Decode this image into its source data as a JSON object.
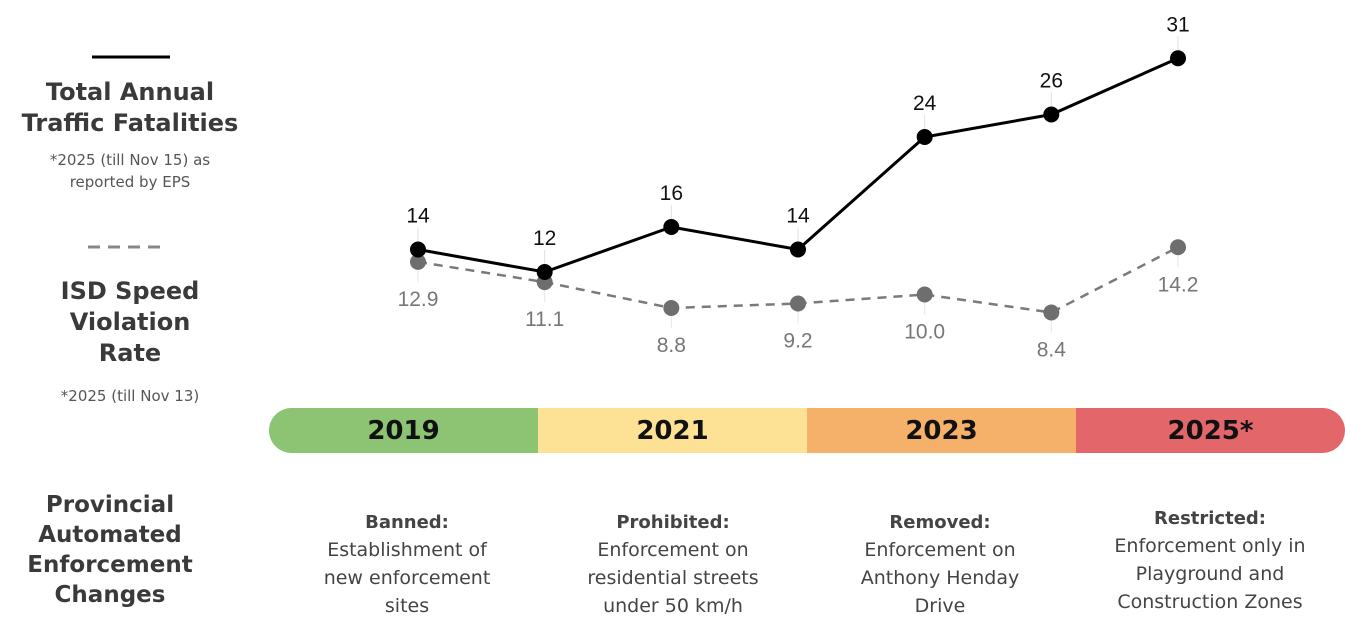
{
  "legend": {
    "fatalities": {
      "title_line1": "Total Annual",
      "title_line2": "Traffic Fatalities",
      "note_line1": "*2025 (till Nov 15) as",
      "note_line2": "reported by EPS",
      "color": "#000000"
    },
    "isd": {
      "title_line1": "ISD Speed Violation",
      "title_line2": "Rate",
      "note": "*2025 (till Nov 13)",
      "color": "#777777"
    }
  },
  "chart_data": {
    "type": "line",
    "x_count": 7,
    "series": [
      {
        "name": "Total Annual Traffic Fatalities",
        "values": [
          14,
          12,
          16,
          14,
          24,
          26,
          31
        ],
        "labels": [
          "14",
          "12",
          "16",
          "14",
          "24",
          "26",
          "31"
        ],
        "style": "solid",
        "color": "#000000"
      },
      {
        "name": "ISD Speed Violation Rate",
        "values": [
          12.9,
          11.1,
          8.8,
          9.2,
          10.0,
          8.4,
          14.2
        ],
        "labels": [
          "12.9",
          "11.1",
          "8.8",
          "9.2",
          "10.0",
          "8.4",
          "14.2"
        ],
        "style": "dashed",
        "color": "#6e6e6e"
      }
    ],
    "grid": false
  },
  "timeline": {
    "segments": [
      {
        "label": "2019",
        "color": "#8cc474"
      },
      {
        "label": "2021",
        "color": "#fde295"
      },
      {
        "label": "2023",
        "color": "#f5b06a"
      },
      {
        "label": "2025*",
        "color": "#e3676a"
      }
    ]
  },
  "changes": {
    "section_title": [
      "Provincial",
      "Automated",
      "Enforcement",
      "Changes"
    ],
    "items": [
      {
        "head": "Banned:",
        "lines": [
          "Establishment of",
          "new enforcement",
          "sites"
        ]
      },
      {
        "head": "Prohibited:",
        "lines": [
          "Enforcement on",
          "residential streets",
          "under 50 km/h"
        ]
      },
      {
        "head": "Removed:",
        "lines": [
          "Enforcement on",
          "Anthony Henday",
          "Drive"
        ]
      },
      {
        "head": "Restricted:",
        "lines": [
          "Enforcement only in",
          "Playground and",
          "Construction Zones"
        ]
      }
    ]
  }
}
